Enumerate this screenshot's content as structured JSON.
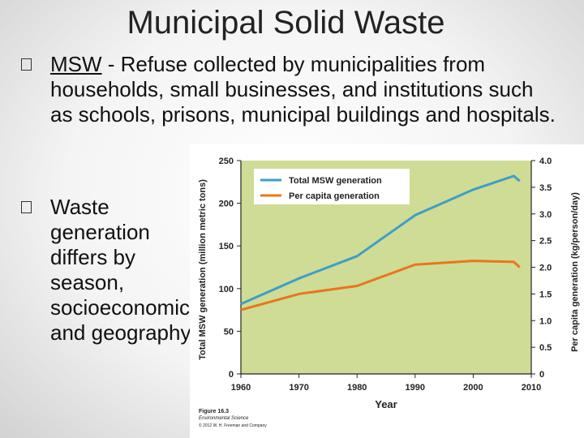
{
  "slide": {
    "title": "Municipal Solid Waste",
    "bullets": [
      {
        "abbr": "MSW",
        "text": " - Refuse collected by municipalities from households, small businesses, and institutions such as schools, prisons, municipal buildings and hospitals."
      },
      {
        "text": "Waste generation differs by season, socioeconomics, and geography."
      }
    ]
  },
  "figure": {
    "caption": "Figure 16.3",
    "book": "Environmental Science",
    "credit": "© 2012 W. H. Freeman and Company"
  },
  "colors": {
    "plot_background": "#cfdc95",
    "total_line": "#3e9ec6",
    "per_capita_line": "#e8761e",
    "legend_background": "#ffffff"
  },
  "chart_data": {
    "type": "line",
    "x": [
      1960,
      1970,
      1980,
      1990,
      2000,
      2007,
      2008
    ],
    "series": [
      {
        "name": "Total MSW generation",
        "axis": "left",
        "values": [
          82,
          112,
          138,
          186,
          216,
          232,
          226
        ]
      },
      {
        "name": "Per capita generation",
        "axis": "right",
        "values": [
          1.2,
          1.5,
          1.65,
          2.05,
          2.12,
          2.1,
          2.0
        ]
      }
    ],
    "xlabel": "Year",
    "ylabel_left": "Total MSW generation (million metric tons)",
    "ylabel_right": "Per capita generation (kg/person/day)",
    "xlim": [
      1960,
      2010
    ],
    "ylim_left": [
      0,
      250
    ],
    "ylim_right": [
      0,
      4.0
    ],
    "xticks": [
      1960,
      1970,
      1980,
      1990,
      2000,
      2010
    ],
    "yticks_left": [
      0,
      50,
      100,
      150,
      200,
      250
    ],
    "yticks_right": [
      0,
      0.5,
      1.0,
      1.5,
      2.0,
      2.5,
      3.0,
      3.5,
      4.0
    ],
    "grid": false,
    "legend": "top-left"
  }
}
